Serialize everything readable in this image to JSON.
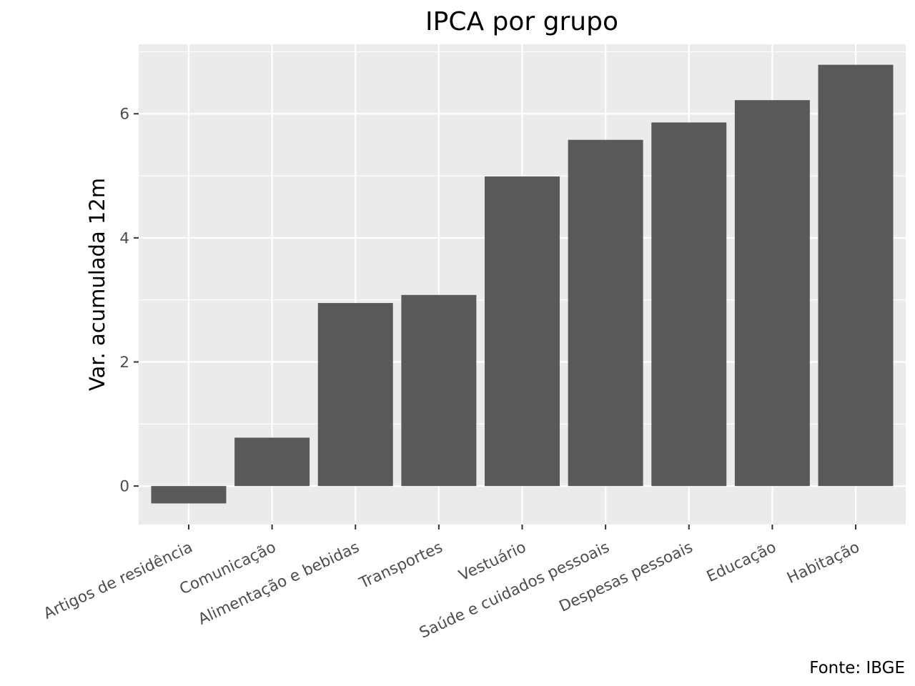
{
  "chart_data": {
    "type": "bar",
    "title": "IPCA por grupo",
    "xlabel": "",
    "ylabel": "Var. acumulada 12m",
    "caption": "Fonte: IBGE",
    "categories": [
      "Artigos de residência",
      "Comunicação",
      "Alimentação e bebidas",
      "Transportes",
      "Vestuário",
      "Saúde e cuidados pessoais",
      "Despesas pessoais",
      "Educação",
      "Habitação"
    ],
    "values": [
      -0.28,
      0.78,
      2.95,
      3.08,
      4.99,
      5.58,
      5.86,
      6.22,
      6.79
    ],
    "ylim": [
      -0.62,
      7.12
    ],
    "yticks": [
      0,
      2,
      4,
      6
    ],
    "grid": true,
    "legend": "none",
    "colors": {
      "panel": "#ebebeb",
      "grid": "#ffffff",
      "bar": "#595959",
      "tick": "#333333",
      "tick_text": "#4d4d4d"
    }
  }
}
